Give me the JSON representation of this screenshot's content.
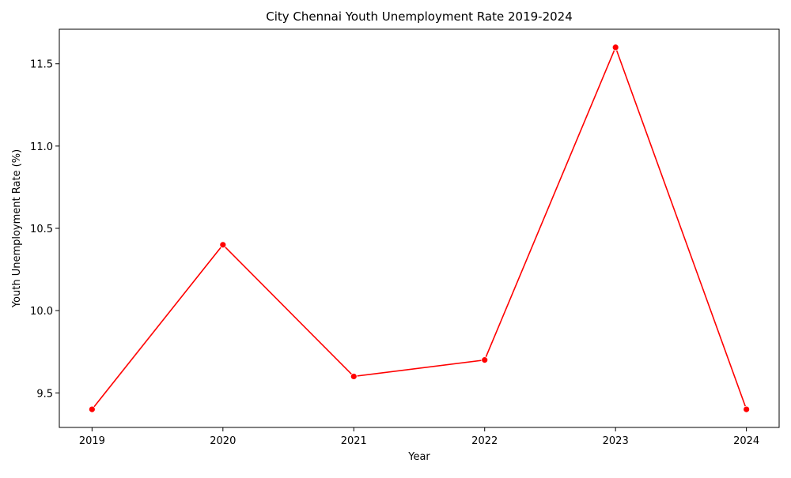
{
  "chart_data": {
    "type": "line",
    "title": "City Chennai Youth Unemployment Rate 2019-2024",
    "xlabel": "Year",
    "ylabel": "Youth Unemployment Rate (%)",
    "x": [
      "2019",
      "2020",
      "2021",
      "2022",
      "2023",
      "2024"
    ],
    "series": [
      {
        "values": [
          9.4,
          10.4,
          9.6,
          9.7,
          11.6,
          9.4
        ]
      }
    ],
    "xlim": [
      2018.75,
      2024.25
    ],
    "ylim": [
      9.29,
      11.71
    ],
    "yticks": [
      9.5,
      10.0,
      10.5,
      11.0,
      11.5
    ],
    "ytick_labels": [
      "9.5",
      "10.0",
      "10.5",
      "11.0",
      "11.5"
    ],
    "grid": false,
    "line_color": "#ff0000",
    "marker": "circle"
  }
}
